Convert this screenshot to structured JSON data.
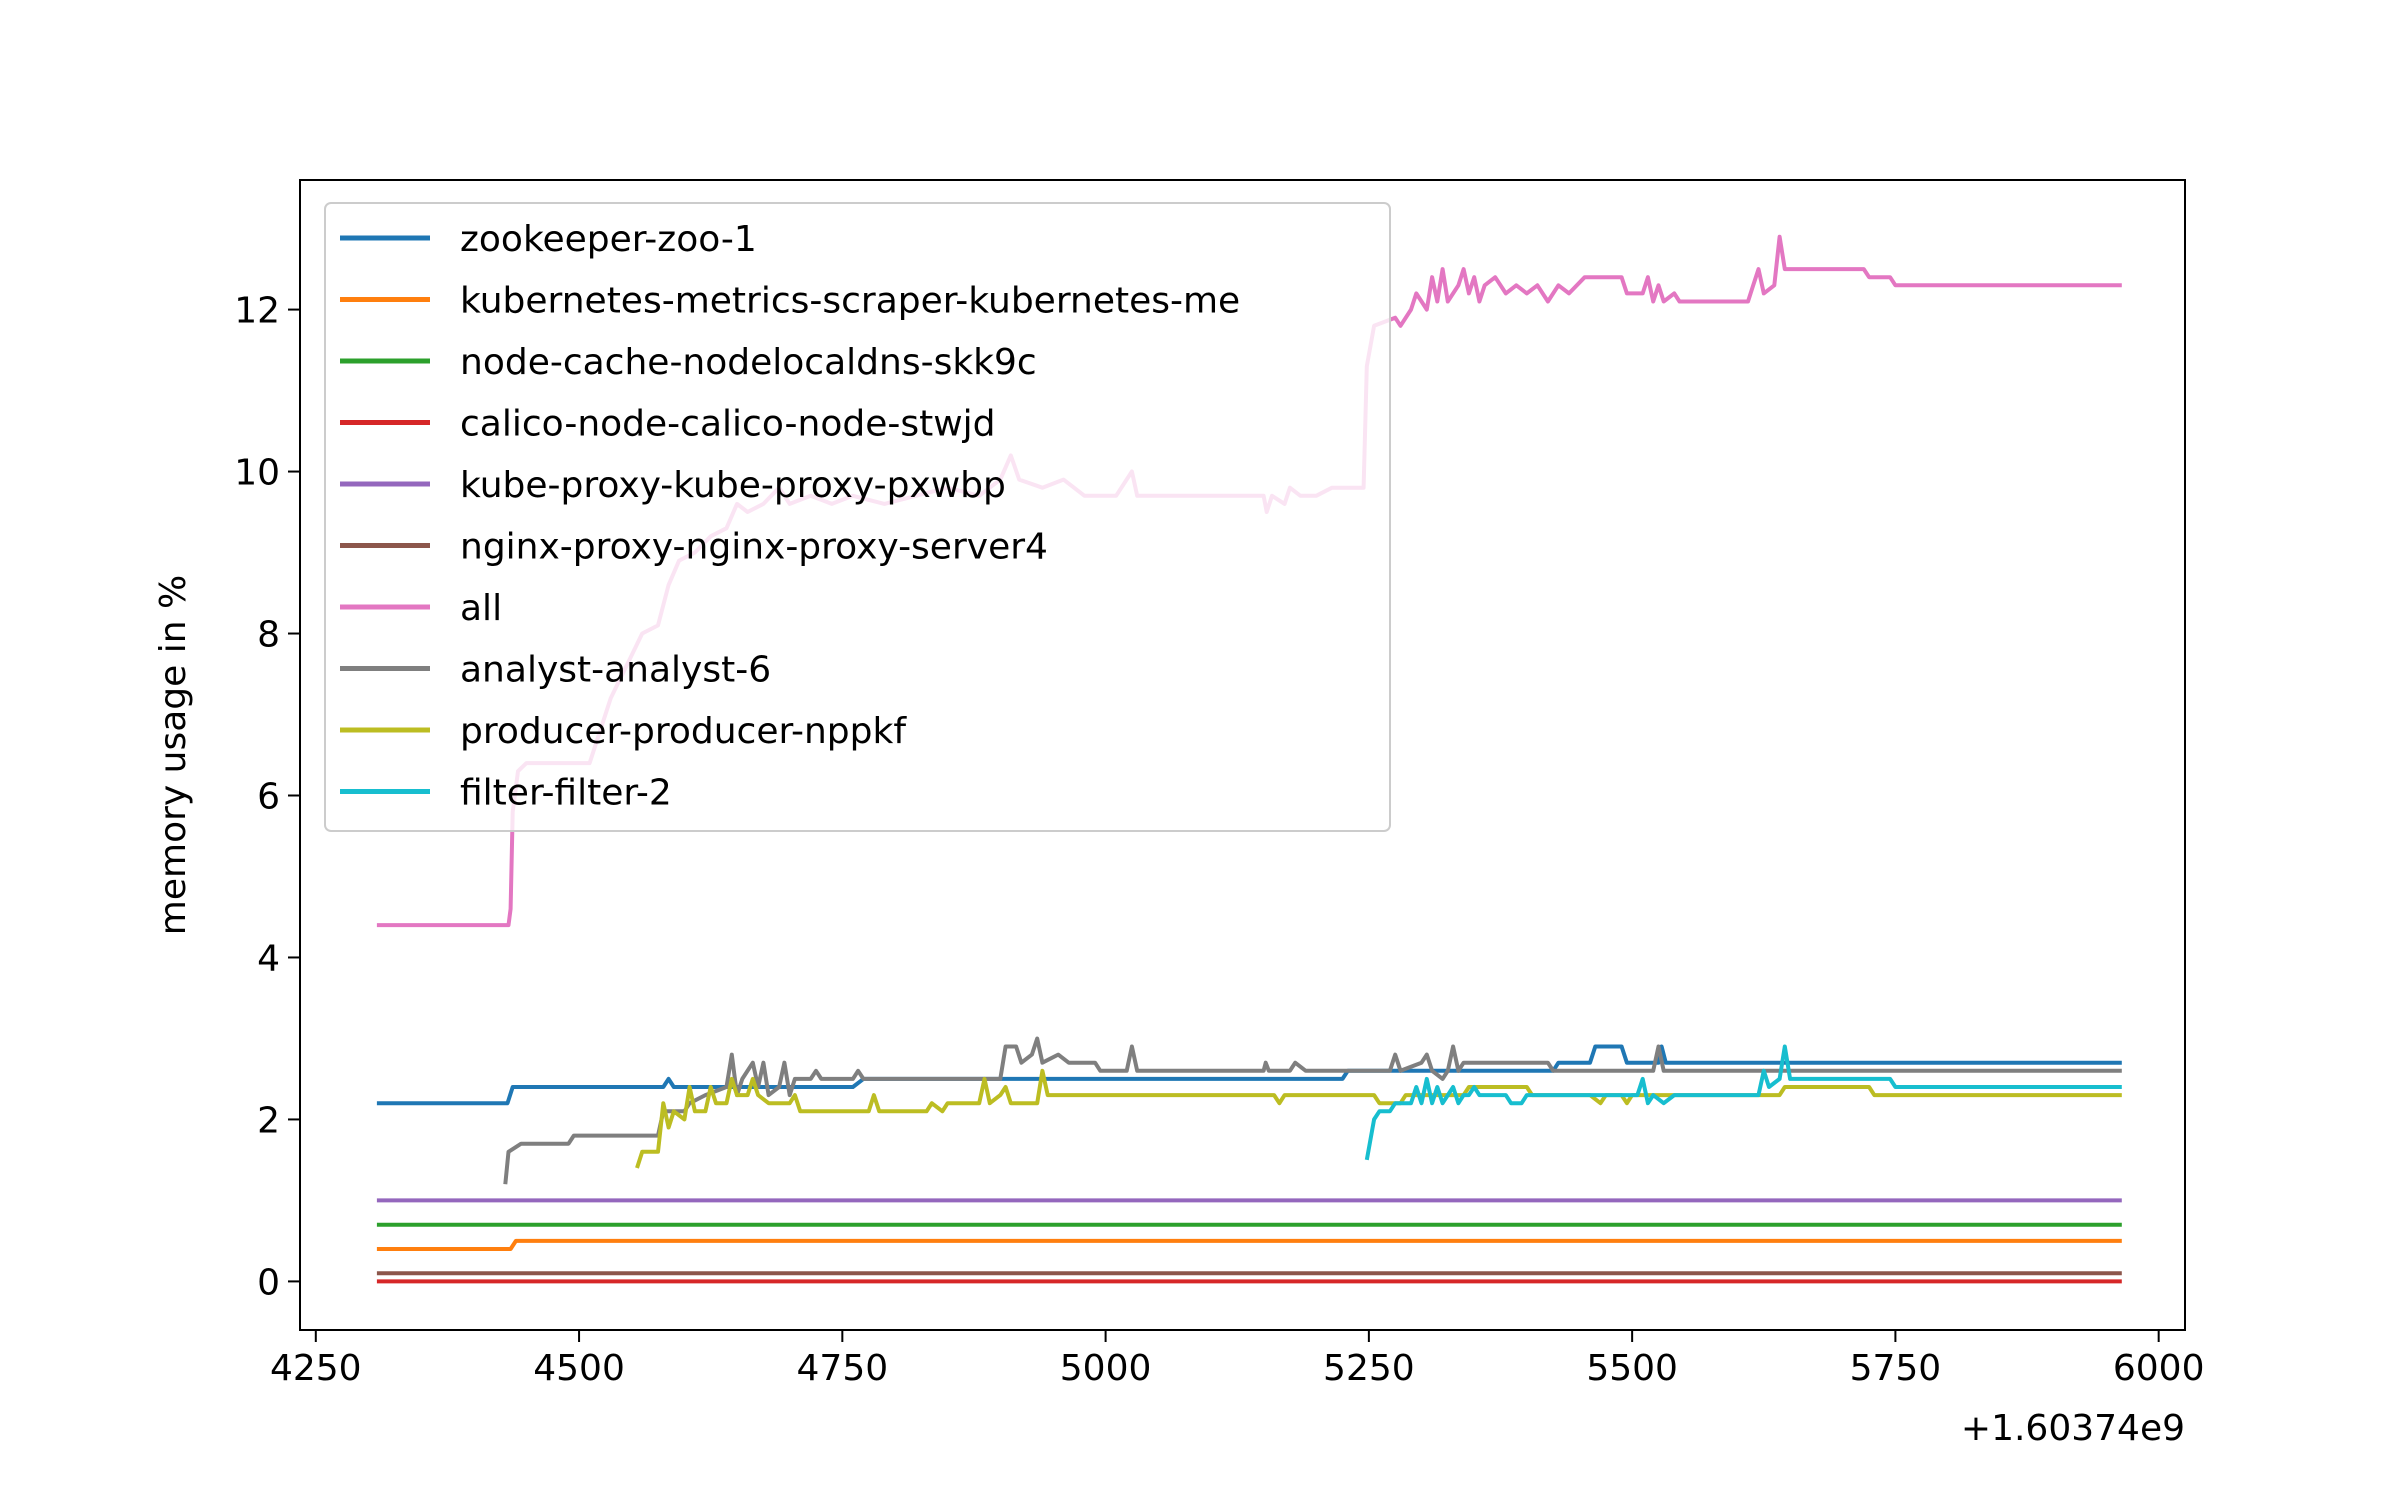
{
  "chart_data": {
    "type": "line",
    "title": "",
    "xlabel": "",
    "ylabel": "memory usage in %",
    "x_offset_label": "+1.60374e9",
    "xlim": [
      4235,
      6025
    ],
    "ylim": [
      -0.6,
      13.6
    ],
    "xticks": [
      4250,
      4500,
      4750,
      5000,
      5250,
      5500,
      5750,
      6000
    ],
    "yticks": [
      0,
      2,
      4,
      6,
      8,
      10,
      12
    ],
    "legend_position": "upper left",
    "grid": false,
    "series": [
      {
        "name": "zookeeper-zoo-1",
        "color": "#1f77b4",
        "points": [
          [
            4308,
            2.2
          ],
          [
            4432,
            2.2
          ],
          [
            4437,
            2.4
          ],
          [
            4580,
            2.4
          ],
          [
            4585,
            2.5
          ],
          [
            4590,
            2.4
          ],
          [
            4760,
            2.4
          ],
          [
            4770,
            2.5
          ],
          [
            5225,
            2.5
          ],
          [
            5230,
            2.6
          ],
          [
            5425,
            2.6
          ],
          [
            5430,
            2.7
          ],
          [
            5460,
            2.7
          ],
          [
            5465,
            2.9
          ],
          [
            5490,
            2.9
          ],
          [
            5495,
            2.7
          ],
          [
            5525,
            2.7
          ],
          [
            5528,
            2.9
          ],
          [
            5532,
            2.7
          ],
          [
            5965,
            2.7
          ]
        ]
      },
      {
        "name": "kubernetes-metrics-scraper-kubernetes-me",
        "color": "#ff7f0e",
        "points": [
          [
            4308,
            0.4
          ],
          [
            4435,
            0.4
          ],
          [
            4440,
            0.5
          ],
          [
            5965,
            0.5
          ]
        ]
      },
      {
        "name": "node-cache-nodelocaldns-skk9c",
        "color": "#2ca02c",
        "points": [
          [
            4308,
            0.7
          ],
          [
            5965,
            0.7
          ]
        ]
      },
      {
        "name": "calico-node-calico-node-stwjd",
        "color": "#d62728",
        "points": [
          [
            4308,
            0.0
          ],
          [
            5965,
            0.0
          ]
        ]
      },
      {
        "name": "kube-proxy-kube-proxy-pxwbp",
        "color": "#9467bd",
        "points": [
          [
            4308,
            1.0
          ],
          [
            5965,
            1.0
          ]
        ]
      },
      {
        "name": "nginx-proxy-nginx-proxy-server4",
        "color": "#8c564b",
        "points": [
          [
            4308,
            0.1
          ],
          [
            5965,
            0.1
          ]
        ]
      },
      {
        "name": "all",
        "color": "#e377c2",
        "points": [
          [
            4308,
            4.4
          ],
          [
            4433,
            4.4
          ],
          [
            4435,
            4.6
          ],
          [
            4437,
            5.8
          ],
          [
            4442,
            6.3
          ],
          [
            4450,
            6.4
          ],
          [
            4510,
            6.4
          ],
          [
            4515,
            6.6
          ],
          [
            4530,
            7.2
          ],
          [
            4545,
            7.6
          ],
          [
            4560,
            8.0
          ],
          [
            4575,
            8.1
          ],
          [
            4585,
            8.6
          ],
          [
            4595,
            8.9
          ],
          [
            4610,
            9.0
          ],
          [
            4625,
            9.2
          ],
          [
            4640,
            9.3
          ],
          [
            4650,
            9.6
          ],
          [
            4660,
            9.5
          ],
          [
            4675,
            9.6
          ],
          [
            4690,
            9.8
          ],
          [
            4700,
            9.6
          ],
          [
            4720,
            9.7
          ],
          [
            4740,
            9.6
          ],
          [
            4760,
            9.7
          ],
          [
            4790,
            9.6
          ],
          [
            4820,
            9.7
          ],
          [
            4850,
            9.8
          ],
          [
            4880,
            9.7
          ],
          [
            4900,
            9.9
          ],
          [
            4910,
            10.2
          ],
          [
            4918,
            9.9
          ],
          [
            4940,
            9.8
          ],
          [
            4960,
            9.9
          ],
          [
            4980,
            9.7
          ],
          [
            5010,
            9.7
          ],
          [
            5025,
            10.0
          ],
          [
            5030,
            9.7
          ],
          [
            5150,
            9.7
          ],
          [
            5153,
            9.5
          ],
          [
            5158,
            9.7
          ],
          [
            5170,
            9.6
          ],
          [
            5175,
            9.8
          ],
          [
            5185,
            9.7
          ],
          [
            5200,
            9.7
          ],
          [
            5215,
            9.8
          ],
          [
            5245,
            9.8
          ],
          [
            5248,
            11.3
          ],
          [
            5255,
            11.8
          ],
          [
            5275,
            11.9
          ],
          [
            5280,
            11.8
          ],
          [
            5290,
            12.0
          ],
          [
            5295,
            12.2
          ],
          [
            5305,
            12.0
          ],
          [
            5310,
            12.4
          ],
          [
            5315,
            12.1
          ],
          [
            5320,
            12.5
          ],
          [
            5325,
            12.1
          ],
          [
            5335,
            12.3
          ],
          [
            5340,
            12.5
          ],
          [
            5345,
            12.2
          ],
          [
            5350,
            12.4
          ],
          [
            5355,
            12.1
          ],
          [
            5360,
            12.3
          ],
          [
            5370,
            12.4
          ],
          [
            5380,
            12.2
          ],
          [
            5390,
            12.3
          ],
          [
            5400,
            12.2
          ],
          [
            5410,
            12.3
          ],
          [
            5420,
            12.1
          ],
          [
            5430,
            12.3
          ],
          [
            5440,
            12.2
          ],
          [
            5455,
            12.4
          ],
          [
            5490,
            12.4
          ],
          [
            5495,
            12.2
          ],
          [
            5510,
            12.2
          ],
          [
            5515,
            12.4
          ],
          [
            5520,
            12.1
          ],
          [
            5525,
            12.3
          ],
          [
            5530,
            12.1
          ],
          [
            5540,
            12.2
          ],
          [
            5545,
            12.1
          ],
          [
            5610,
            12.1
          ],
          [
            5615,
            12.3
          ],
          [
            5620,
            12.5
          ],
          [
            5625,
            12.2
          ],
          [
            5635,
            12.3
          ],
          [
            5640,
            12.9
          ],
          [
            5645,
            12.5
          ],
          [
            5720,
            12.5
          ],
          [
            5725,
            12.4
          ],
          [
            5745,
            12.4
          ],
          [
            5750,
            12.3
          ],
          [
            5965,
            12.3
          ]
        ]
      },
      {
        "name": "analyst-analyst-6",
        "color": "#7f7f7f",
        "points": [
          [
            4430,
            1.2
          ],
          [
            4433,
            1.6
          ],
          [
            4445,
            1.7
          ],
          [
            4490,
            1.7
          ],
          [
            4495,
            1.8
          ],
          [
            4575,
            1.8
          ],
          [
            4580,
            2.1
          ],
          [
            4600,
            2.1
          ],
          [
            4605,
            2.2
          ],
          [
            4620,
            2.3
          ],
          [
            4640,
            2.4
          ],
          [
            4645,
            2.8
          ],
          [
            4650,
            2.3
          ],
          [
            4655,
            2.5
          ],
          [
            4665,
            2.7
          ],
          [
            4670,
            2.4
          ],
          [
            4675,
            2.7
          ],
          [
            4680,
            2.3
          ],
          [
            4690,
            2.4
          ],
          [
            4695,
            2.7
          ],
          [
            4700,
            2.3
          ],
          [
            4705,
            2.5
          ],
          [
            4720,
            2.5
          ],
          [
            4725,
            2.6
          ],
          [
            4730,
            2.5
          ],
          [
            4760,
            2.5
          ],
          [
            4765,
            2.6
          ],
          [
            4770,
            2.5
          ],
          [
            4900,
            2.5
          ],
          [
            4905,
            2.9
          ],
          [
            4915,
            2.9
          ],
          [
            4920,
            2.7
          ],
          [
            4930,
            2.8
          ],
          [
            4935,
            3.0
          ],
          [
            4940,
            2.7
          ],
          [
            4955,
            2.8
          ],
          [
            4965,
            2.7
          ],
          [
            4990,
            2.7
          ],
          [
            4995,
            2.6
          ],
          [
            5020,
            2.6
          ],
          [
            5025,
            2.9
          ],
          [
            5030,
            2.6
          ],
          [
            5150,
            2.6
          ],
          [
            5152,
            2.7
          ],
          [
            5155,
            2.6
          ],
          [
            5175,
            2.6
          ],
          [
            5180,
            2.7
          ],
          [
            5190,
            2.6
          ],
          [
            5270,
            2.6
          ],
          [
            5275,
            2.8
          ],
          [
            5280,
            2.6
          ],
          [
            5300,
            2.7
          ],
          [
            5305,
            2.8
          ],
          [
            5310,
            2.6
          ],
          [
            5320,
            2.5
          ],
          [
            5325,
            2.6
          ],
          [
            5330,
            2.9
          ],
          [
            5335,
            2.6
          ],
          [
            5340,
            2.7
          ],
          [
            5420,
            2.7
          ],
          [
            5425,
            2.6
          ],
          [
            5520,
            2.6
          ],
          [
            5525,
            2.9
          ],
          [
            5530,
            2.6
          ],
          [
            5965,
            2.6
          ]
        ]
      },
      {
        "name": "producer-producer-nppkf",
        "color": "#bcbd22",
        "points": [
          [
            4555,
            1.4
          ],
          [
            4560,
            1.6
          ],
          [
            4575,
            1.6
          ],
          [
            4580,
            2.2
          ],
          [
            4585,
            1.9
          ],
          [
            4590,
            2.1
          ],
          [
            4600,
            2.0
          ],
          [
            4605,
            2.4
          ],
          [
            4610,
            2.1
          ],
          [
            4620,
            2.1
          ],
          [
            4625,
            2.4
          ],
          [
            4630,
            2.2
          ],
          [
            4640,
            2.2
          ],
          [
            4645,
            2.5
          ],
          [
            4650,
            2.3
          ],
          [
            4660,
            2.3
          ],
          [
            4665,
            2.5
          ],
          [
            4670,
            2.3
          ],
          [
            4680,
            2.2
          ],
          [
            4700,
            2.2
          ],
          [
            4705,
            2.3
          ],
          [
            4710,
            2.1
          ],
          [
            4775,
            2.1
          ],
          [
            4780,
            2.3
          ],
          [
            4785,
            2.1
          ],
          [
            4830,
            2.1
          ],
          [
            4835,
            2.2
          ],
          [
            4845,
            2.1
          ],
          [
            4850,
            2.2
          ],
          [
            4880,
            2.2
          ],
          [
            4885,
            2.5
          ],
          [
            4890,
            2.2
          ],
          [
            4900,
            2.3
          ],
          [
            4905,
            2.4
          ],
          [
            4910,
            2.2
          ],
          [
            4935,
            2.2
          ],
          [
            4940,
            2.6
          ],
          [
            4945,
            2.3
          ],
          [
            5160,
            2.3
          ],
          [
            5165,
            2.2
          ],
          [
            5170,
            2.3
          ],
          [
            5255,
            2.3
          ],
          [
            5260,
            2.2
          ],
          [
            5280,
            2.2
          ],
          [
            5285,
            2.3
          ],
          [
            5340,
            2.3
          ],
          [
            5345,
            2.4
          ],
          [
            5400,
            2.4
          ],
          [
            5405,
            2.3
          ],
          [
            5460,
            2.3
          ],
          [
            5470,
            2.2
          ],
          [
            5475,
            2.3
          ],
          [
            5490,
            2.3
          ],
          [
            5495,
            2.2
          ],
          [
            5500,
            2.3
          ],
          [
            5640,
            2.3
          ],
          [
            5645,
            2.4
          ],
          [
            5725,
            2.4
          ],
          [
            5730,
            2.3
          ],
          [
            5965,
            2.3
          ]
        ]
      },
      {
        "name": "filter-filter-2",
        "color": "#17becf",
        "points": [
          [
            5248,
            1.5
          ],
          [
            5255,
            2.0
          ],
          [
            5260,
            2.1
          ],
          [
            5270,
            2.1
          ],
          [
            5275,
            2.2
          ],
          [
            5290,
            2.2
          ],
          [
            5295,
            2.4
          ],
          [
            5300,
            2.2
          ],
          [
            5305,
            2.5
          ],
          [
            5310,
            2.2
          ],
          [
            5315,
            2.4
          ],
          [
            5320,
            2.2
          ],
          [
            5330,
            2.4
          ],
          [
            5335,
            2.2
          ],
          [
            5340,
            2.3
          ],
          [
            5345,
            2.3
          ],
          [
            5350,
            2.4
          ],
          [
            5355,
            2.3
          ],
          [
            5380,
            2.3
          ],
          [
            5385,
            2.2
          ],
          [
            5395,
            2.2
          ],
          [
            5400,
            2.3
          ],
          [
            5505,
            2.3
          ],
          [
            5510,
            2.5
          ],
          [
            5515,
            2.2
          ],
          [
            5520,
            2.3
          ],
          [
            5530,
            2.2
          ],
          [
            5540,
            2.3
          ],
          [
            5620,
            2.3
          ],
          [
            5625,
            2.6
          ],
          [
            5630,
            2.4
          ],
          [
            5640,
            2.5
          ],
          [
            5645,
            2.9
          ],
          [
            5650,
            2.5
          ],
          [
            5745,
            2.5
          ],
          [
            5750,
            2.4
          ],
          [
            5965,
            2.4
          ]
        ]
      }
    ]
  }
}
